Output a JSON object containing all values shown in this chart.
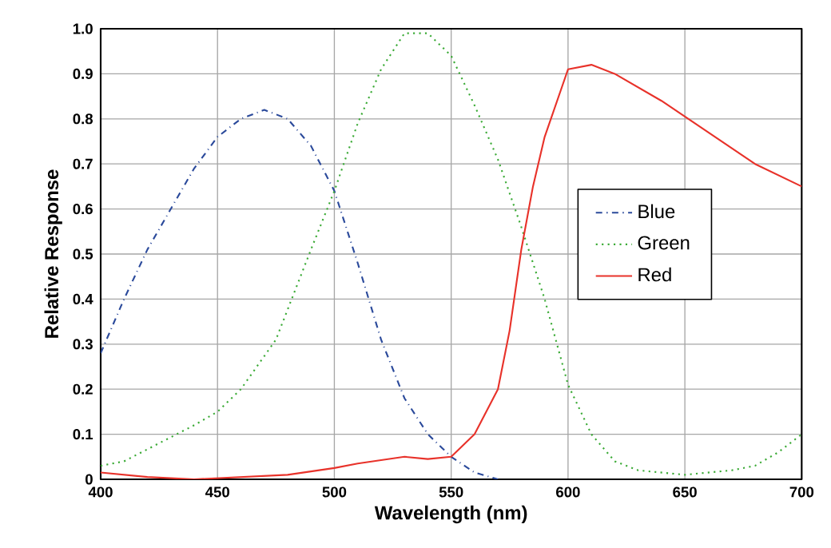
{
  "chart_data": {
    "type": "line",
    "xlabel": "Wavelength (nm)",
    "ylabel": "Relative Response",
    "xlim": [
      400,
      700
    ],
    "xticks": [
      400,
      450,
      500,
      550,
      600,
      650,
      700
    ],
    "ylim": [
      0,
      1
    ],
    "yticks": [
      0,
      0.1,
      0.2,
      0.3,
      0.4,
      0.5,
      0.6,
      0.7,
      0.8,
      0.9,
      {
        "value": 1,
        "label": "1.0"
      }
    ],
    "grid": true,
    "legend": "right",
    "marker": "none",
    "series": [
      {
        "name": "Blue",
        "color": "#2b4a9b",
        "line_style": "dashdot",
        "x": [
          400,
          410,
          420,
          430,
          440,
          450,
          460,
          470,
          480,
          490,
          500,
          510,
          520,
          530,
          540,
          550,
          560,
          570
        ],
        "values": [
          0.28,
          0.4,
          0.51,
          0.6,
          0.69,
          0.76,
          0.8,
          0.82,
          0.8,
          0.74,
          0.64,
          0.48,
          0.31,
          0.18,
          0.1,
          0.05,
          0.015,
          0
        ]
      },
      {
        "name": "Green",
        "color": "#3aaa35",
        "line_style": "dotted",
        "x": [
          400,
          410,
          425,
          440,
          450,
          460,
          475,
          490,
          500,
          510,
          520,
          530,
          540,
          550,
          560,
          570,
          580,
          590,
          600,
          610,
          620,
          630,
          650,
          670,
          680,
          690,
          700
        ],
        "values": [
          0.03,
          0.04,
          0.08,
          0.12,
          0.15,
          0.2,
          0.31,
          0.51,
          0.64,
          0.79,
          0.91,
          0.99,
          0.99,
          0.94,
          0.83,
          0.71,
          0.56,
          0.4,
          0.21,
          0.1,
          0.04,
          0.02,
          0.01,
          0.02,
          0.03,
          0.06,
          0.1
        ]
      },
      {
        "name": "Red",
        "color": "#e8322a",
        "line_style": "solid",
        "x": [
          400,
          420,
          440,
          460,
          480,
          500,
          510,
          530,
          540,
          550,
          560,
          570,
          575,
          580,
          585,
          590,
          600,
          610,
          620,
          640,
          660,
          680,
          700
        ],
        "values": [
          0.015,
          0.005,
          0,
          0.005,
          0.01,
          0.025,
          0.035,
          0.05,
          0.045,
          0.05,
          0.1,
          0.2,
          0.33,
          0.51,
          0.65,
          0.76,
          0.91,
          0.92,
          0.9,
          0.84,
          0.77,
          0.7,
          0.65
        ]
      }
    ]
  }
}
